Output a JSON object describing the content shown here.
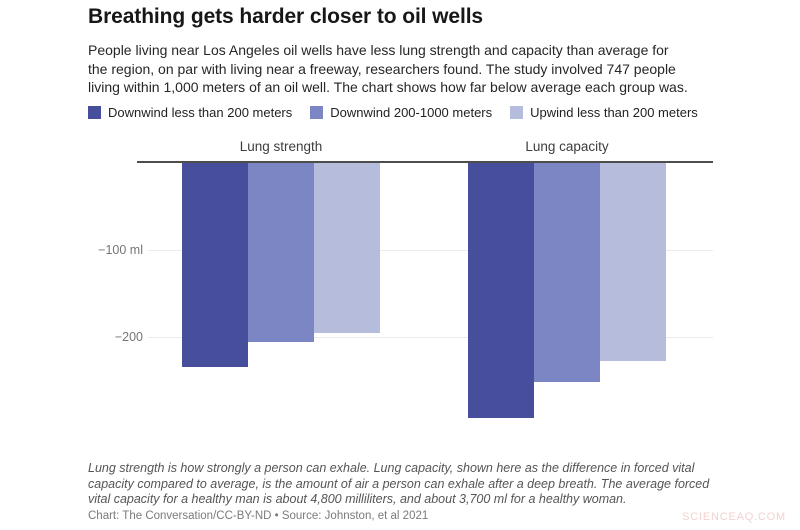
{
  "header": {
    "title": "Breathing gets harder closer to oil wells",
    "desc_lines": [
      "People living near Los Angeles oil wells have less lung strength and capacity than average for",
      "the region, on par with living near a freeway, researchers found. The study involved 747 people",
      "living within 1,000 meters of an oil well. The chart shows how far below average each group was."
    ]
  },
  "chart_data": {
    "type": "bar",
    "title": "Breathing gets harder closer to oil wells",
    "categories": [
      "Lung strength",
      "Lung capacity"
    ],
    "series": [
      {
        "name": "Downwind less than 200 meters",
        "color": "#474f9c",
        "values": [
          -235,
          -293
        ]
      },
      {
        "name": "Downwind 200-1000 meters",
        "color": "#7d86c4",
        "values": [
          -206,
          -252
        ]
      },
      {
        "name": "Upwind less than 200 meters",
        "color": "#b6bcdc",
        "values": [
          -195,
          -228
        ]
      }
    ],
    "unit": "ml",
    "yticks": [
      {
        "value": -100,
        "label": "−100 ml"
      },
      {
        "value": -200,
        "label": "−200"
      }
    ],
    "ylim": [
      -320,
      0
    ],
    "grid": true,
    "legend_position": "top",
    "orientation": "vertical-negative"
  },
  "footer": {
    "note_lines": [
      "Lung strength is how strongly a person can exhale. Lung capacity, shown here as the difference in forced vital",
      "capacity compared to average, is the amount of air a person can exhale after a deep breath. The average forced",
      "vital capacity for a healthy man is about 4,800 milliliters, and about 3,700 ml for a healthy woman."
    ],
    "credit": "Chart: The Conversation/CC-BY-ND • Source: Johnston, et al 2021",
    "watermark": "SCIENCEAQ.COM"
  }
}
